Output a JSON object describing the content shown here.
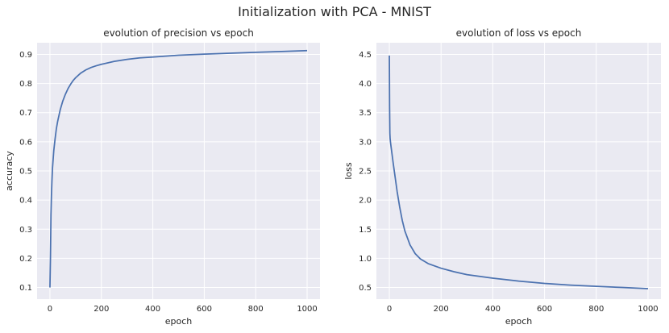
{
  "figure": {
    "title": "Initialization with PCA - MNIST",
    "colors": {
      "axes_bg": "#eaeaf2",
      "grid": "#ffffff",
      "line": "#4c72b0",
      "text": "#262626"
    }
  },
  "chart_data": [
    {
      "type": "line",
      "title": "evolution of precision vs epoch",
      "xlabel": "epoch",
      "ylabel": "accuracy",
      "xlim": [
        -50,
        1050
      ],
      "ylim": [
        0.06,
        0.94
      ],
      "xticks": [
        0,
        200,
        400,
        600,
        800,
        1000
      ],
      "yticks": [
        0.1,
        0.2,
        0.3,
        0.4,
        0.5,
        0.6,
        0.7,
        0.8,
        0.9
      ],
      "ytick_labels": [
        "0.1",
        "0.2",
        "0.3",
        "0.4",
        "0.5",
        "0.6",
        "0.7",
        "0.8",
        "0.9"
      ],
      "grid": true,
      "series": [
        {
          "x": [
            0,
            2,
            4,
            6,
            8,
            10,
            15,
            20,
            25,
            30,
            40,
            50,
            60,
            70,
            80,
            90,
            100,
            120,
            140,
            160,
            180,
            200,
            250,
            300,
            350,
            400,
            500,
            600,
            700,
            800,
            900,
            1000
          ],
          "y": [
            0.1,
            0.2,
            0.35,
            0.42,
            0.47,
            0.51,
            0.57,
            0.61,
            0.645,
            0.67,
            0.71,
            0.74,
            0.763,
            0.782,
            0.797,
            0.81,
            0.82,
            0.836,
            0.847,
            0.855,
            0.861,
            0.866,
            0.876,
            0.883,
            0.888,
            0.891,
            0.897,
            0.901,
            0.904,
            0.907,
            0.91,
            0.913
          ]
        }
      ]
    },
    {
      "type": "line",
      "title": "evolution of loss vs epoch",
      "xlabel": "epoch",
      "ylabel": "loss",
      "xlim": [
        -50,
        1050
      ],
      "ylim": [
        0.3,
        4.7
      ],
      "xticks": [
        0,
        200,
        400,
        600,
        800,
        1000
      ],
      "yticks": [
        0.5,
        1.0,
        1.5,
        2.0,
        2.5,
        3.0,
        3.5,
        4.0,
        4.5
      ],
      "ytick_labels": [
        "0.5",
        "1.0",
        "1.5",
        "2.0",
        "2.5",
        "3.0",
        "3.5",
        "4.0",
        "4.5"
      ],
      "grid": true,
      "series": [
        {
          "x": [
            0,
            1,
            2,
            3,
            5,
            8,
            10,
            15,
            20,
            30,
            40,
            50,
            60,
            80,
            100,
            120,
            150,
            200,
            250,
            300,
            400,
            500,
            600,
            700,
            800,
            900,
            1000
          ],
          "y": [
            4.48,
            3.6,
            3.15,
            3.05,
            2.97,
            2.87,
            2.8,
            2.63,
            2.47,
            2.15,
            1.88,
            1.65,
            1.47,
            1.23,
            1.08,
            0.99,
            0.91,
            0.83,
            0.77,
            0.72,
            0.66,
            0.61,
            0.57,
            0.54,
            0.52,
            0.5,
            0.48
          ]
        }
      ]
    }
  ]
}
